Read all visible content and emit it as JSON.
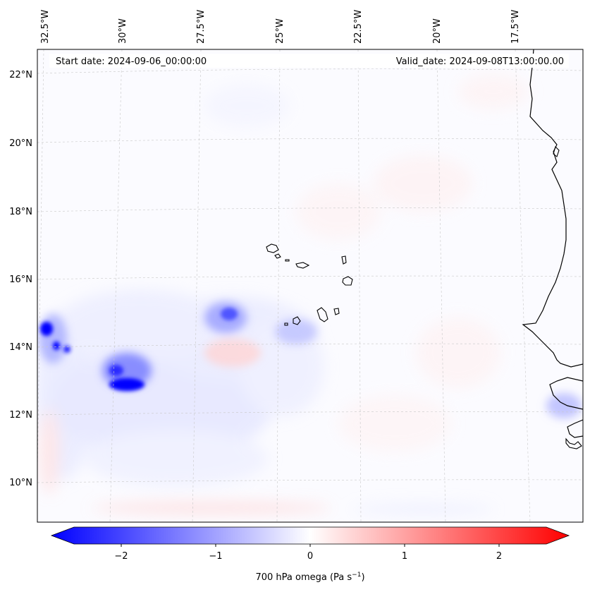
{
  "header": {
    "start_date": "Start date: 2024-09-06_00:00:00",
    "valid_date": "Valid_date: 2024-09-08T13:00:00.00"
  },
  "longitude_labels": [
    "32.5°W",
    "30°W",
    "27.5°W",
    "25°W",
    "22.5°W",
    "20°W",
    "17.5°W"
  ],
  "latitude_labels": [
    "22°N",
    "20°N",
    "18°N",
    "16°N",
    "14°N",
    "12°N",
    "10°N"
  ],
  "colorbar": {
    "label": "700 hPa omega (Pa s",
    "label_exponent": "−1",
    "label_suffix": ")",
    "ticks": [
      "−2",
      "−1",
      "0",
      "1",
      "2"
    ],
    "range": [
      -2.6,
      2.6
    ],
    "colormap": "bwr",
    "colors": {
      "negative": "#0000ff",
      "zero": "#ffffff",
      "positive": "#ff0000"
    }
  },
  "map": {
    "variable": "700 hPa omega",
    "extent_lon": [
      -33,
      -15.5
    ],
    "extent_lat": [
      9,
      22.8
    ],
    "gridlines": true,
    "coastlines": true,
    "features": [
      "Cape Verde islands",
      "West African coast"
    ]
  }
}
